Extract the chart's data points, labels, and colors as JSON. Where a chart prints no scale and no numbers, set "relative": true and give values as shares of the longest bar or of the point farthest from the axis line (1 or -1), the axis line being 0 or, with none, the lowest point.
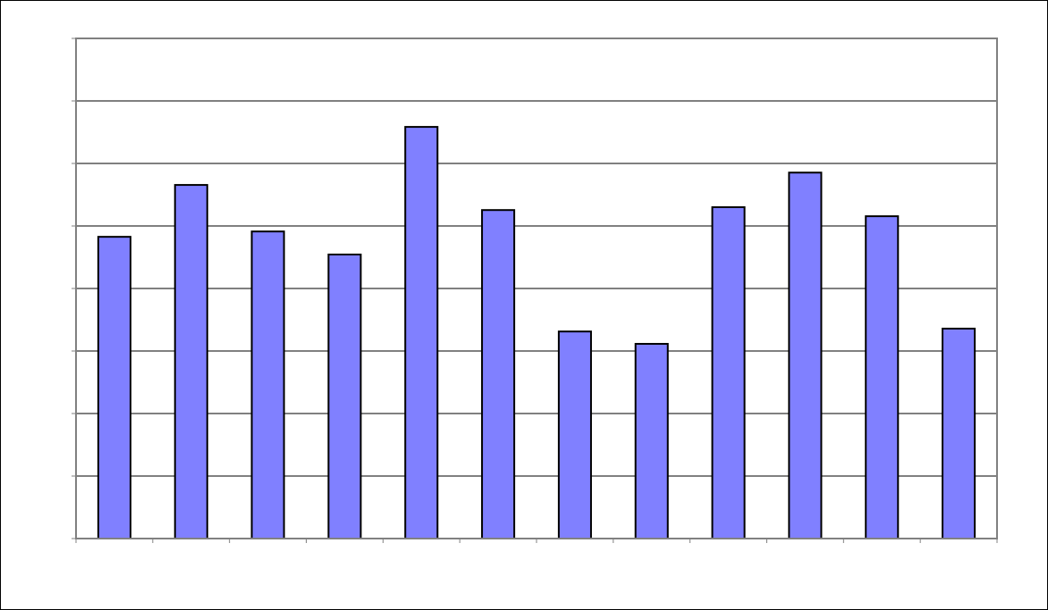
{
  "chart_data": {
    "type": "bar",
    "relative": true,
    "categories": [
      null,
      null,
      null,
      null,
      null,
      null,
      null,
      null,
      null,
      null,
      null,
      null
    ],
    "values": [
      0.733,
      0.859,
      0.746,
      0.69,
      1,
      0.798,
      0.503,
      0.473,
      0.805,
      0.889,
      0.783,
      0.51
    ],
    "color": "#8080ff",
    "grid": "y"
  }
}
